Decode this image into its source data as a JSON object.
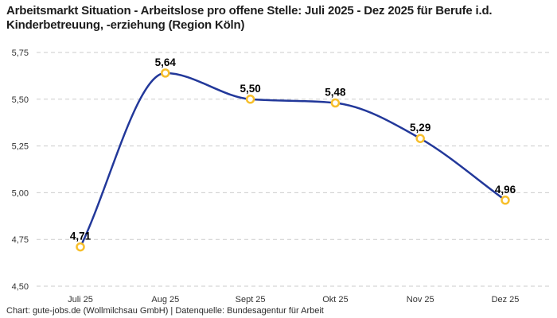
{
  "header": {
    "title": "Arbeitsmarkt Situation - Arbeitslose pro offene Stelle: Juli 2025 - Dez 2025 für Berufe i.d. Kinderbetreuung, -erziehung (Region Köln)"
  },
  "footer": {
    "attribution": "Chart: gute-jobs.de (Wollmilchsau GmbH) | Datenquelle: Bundesagentur für Arbeit"
  },
  "colors": {
    "line": "#22389a",
    "marker_ring": "#f7bf2b",
    "marker_fill": "#ffffff",
    "grid": "#cbcbcb",
    "tick_text": "#333333",
    "data_label": "#000000"
  },
  "chart_data": {
    "type": "line",
    "title": "Arbeitsmarkt Situation - Arbeitslose pro offene Stelle: Juli 2025 - Dez 2025 für Berufe i.d. Kinderbetreuung, -erziehung (Region Köln)",
    "categories": [
      "Juli 25",
      "Aug 25",
      "Sept 25",
      "Okt 25",
      "Nov 25",
      "Dez 25"
    ],
    "values": [
      4.71,
      5.64,
      5.5,
      5.48,
      5.29,
      4.96
    ],
    "point_labels": [
      "4,71",
      "5,64",
      "5,50",
      "5,48",
      "5,29",
      "4,96"
    ],
    "xlabel": "",
    "ylabel": "",
    "ylim": [
      4.5,
      5.75
    ],
    "yticks": [
      5.75,
      5.5,
      5.25,
      5.0,
      4.75,
      4.5
    ],
    "ytick_labels": [
      "5,75",
      "5,50",
      "5,25",
      "5,00",
      "4,75",
      "4,50"
    ],
    "grid": "horizontal-dashed",
    "legend": "none",
    "line_shape": "monotone",
    "decimal_separator": ","
  }
}
